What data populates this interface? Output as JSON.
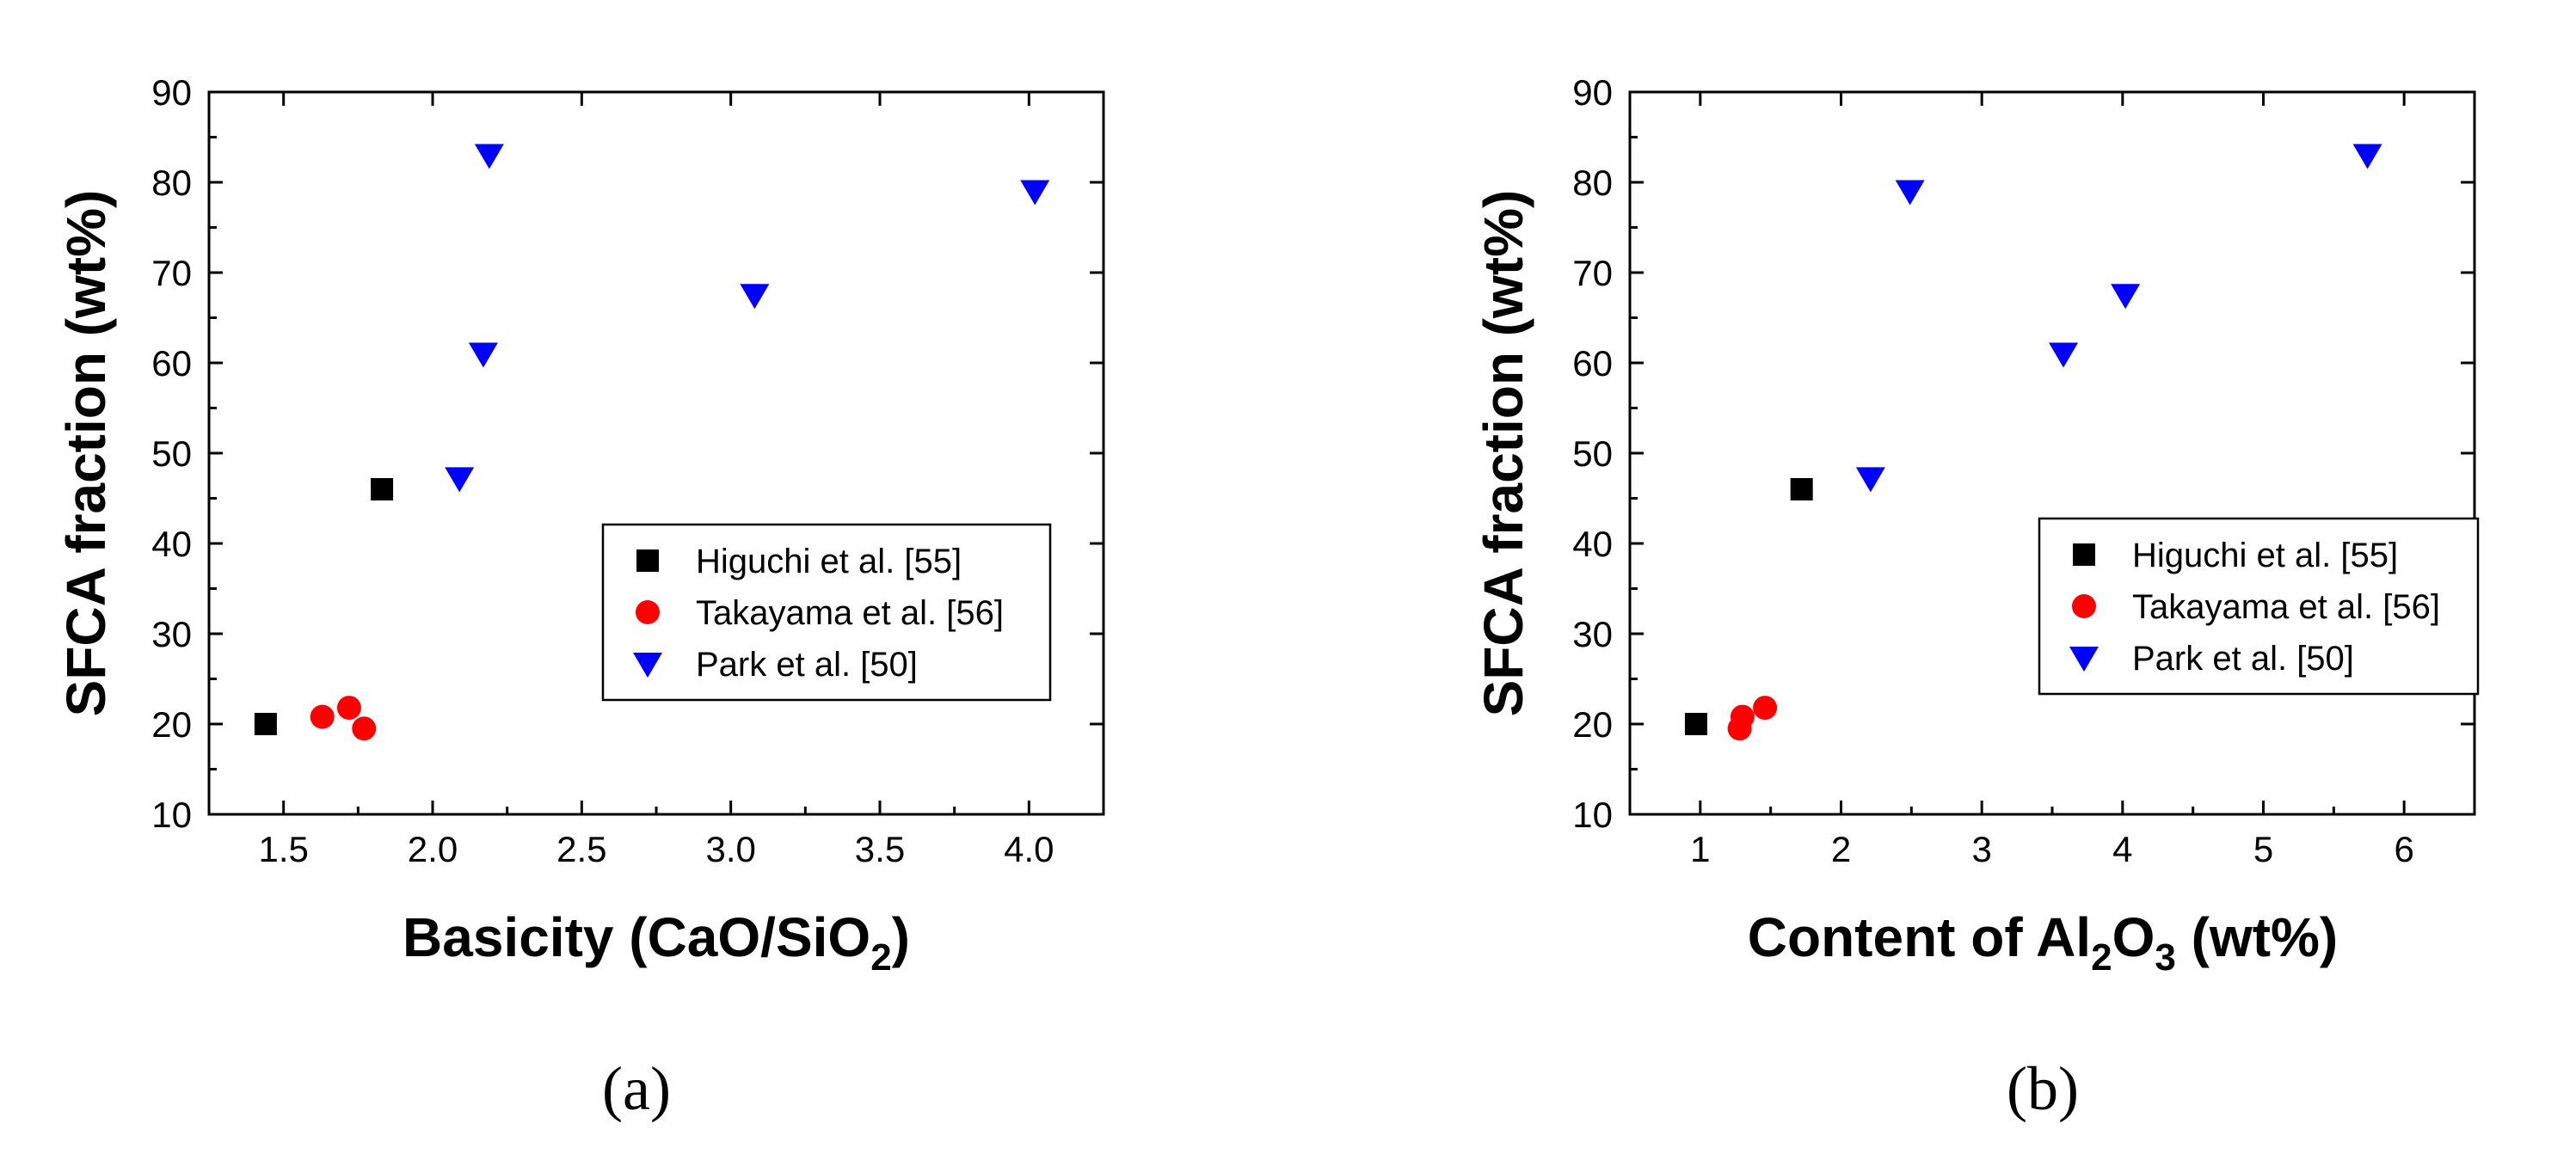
{
  "chart_data": [
    {
      "type": "scatter",
      "panel_label": "(a)",
      "xlabel": "Basicity (CaO/SiO",
      "xlabel_sub": "2",
      "xlabel_end": ")",
      "ylabel": "SFCA fraction (wt%)",
      "xlim": [
        1.25,
        4.25
      ],
      "ylim": [
        10,
        90
      ],
      "xticks": [
        1.5,
        2.0,
        2.5,
        3.0,
        3.5,
        4.0
      ],
      "xtick_labels": [
        "1.5",
        "2.0",
        "2.5",
        "3.0",
        "3.5",
        "4.0"
      ],
      "yticks": [
        10,
        20,
        30,
        40,
        50,
        60,
        70,
        80,
        90
      ],
      "ytick_labels": [
        "10",
        "20",
        "30",
        "40",
        "50",
        "60",
        "70",
        "80",
        "90"
      ],
      "legend_position": "lower-right",
      "series": [
        {
          "name": "Higuchi et al. [55]",
          "marker": "square",
          "color": "#000000",
          "x": [
            1.44,
            1.83
          ],
          "y": [
            20.0,
            46.0
          ]
        },
        {
          "name": "Takayama et al. [56]",
          "marker": "circle",
          "color": "#ff0000",
          "x": [
            1.63,
            1.72,
            1.77
          ],
          "y": [
            20.8,
            21.8,
            19.5
          ]
        },
        {
          "name": "Park et al. [50]",
          "marker": "triangle-down",
          "color": "#0000ff",
          "x": [
            2.09,
            2.17,
            2.19,
            3.08,
            4.02
          ],
          "y": [
            47.2,
            61.0,
            83.0,
            67.5,
            79.0
          ]
        }
      ]
    },
    {
      "type": "scatter",
      "panel_label": "(b)",
      "xlabel": "Content of Al",
      "xlabel_sub": "2",
      "xlabel_mid": "O",
      "xlabel_sub2": "3",
      "xlabel_end": " (wt%)",
      "ylabel": "SFCA fraction (wt%)",
      "xlim": [
        0.5,
        6.5
      ],
      "ylim": [
        10,
        90
      ],
      "xticks": [
        1,
        2,
        3,
        4,
        5,
        6
      ],
      "xtick_labels": [
        "1",
        "2",
        "3",
        "4",
        "5",
        "6"
      ],
      "yticks": [
        10,
        20,
        30,
        40,
        50,
        60,
        70,
        80,
        90
      ],
      "ytick_labels": [
        "10",
        "20",
        "30",
        "40",
        "50",
        "60",
        "70",
        "80",
        "90"
      ],
      "legend_position": "lower-right",
      "series": [
        {
          "name": "Higuchi et al. [55]",
          "marker": "square",
          "color": "#000000",
          "x": [
            0.97,
            1.72
          ],
          "y": [
            20.0,
            46.0
          ]
        },
        {
          "name": "Takayama et al. [56]",
          "marker": "circle",
          "color": "#ff0000",
          "x": [
            1.28,
            1.3,
            1.46
          ],
          "y": [
            19.5,
            20.8,
            21.8
          ]
        },
        {
          "name": "Park et al. [50]",
          "marker": "triangle-down",
          "color": "#0000ff",
          "x": [
            2.21,
            2.49,
            3.58,
            4.02,
            5.74
          ],
          "y": [
            47.2,
            79.0,
            61.0,
            67.5,
            83.0
          ]
        }
      ]
    }
  ]
}
